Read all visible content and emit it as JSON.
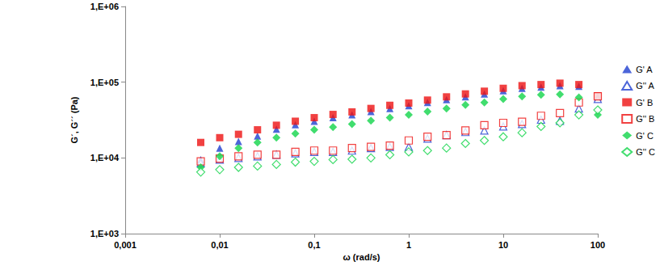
{
  "chart_data": {
    "type": "scatter",
    "x_label": "ω (rad/s)",
    "y_label": "G´, G´´ (Pa)",
    "log": true,
    "grid": false,
    "legend": "right",
    "xlim": [
      0.001,
      100
    ],
    "ylim": [
      1000,
      1000000
    ],
    "xticks": [
      {
        "value": 0.001,
        "label": "0,001"
      },
      {
        "value": 0.01,
        "label": "0,01"
      },
      {
        "value": 0.1,
        "label": "0,1"
      },
      1,
      10,
      100
    ],
    "yticks": [
      {
        "value": 1000,
        "label": "1,E+03"
      },
      {
        "value": 10000,
        "label": "1,E+04"
      },
      {
        "value": 100000,
        "label": "1,E+05"
      },
      {
        "value": 1000000,
        "label": "1,E+06"
      }
    ],
    "x": [
      0.0063,
      0.01,
      0.0158,
      0.0251,
      0.0398,
      0.0631,
      0.1,
      0.158,
      0.251,
      0.398,
      0.631,
      1,
      1.58,
      2.51,
      3.98,
      6.31,
      10,
      15.8,
      25.1,
      39.8,
      63.1,
      100
    ],
    "series": [
      {
        "name": "G' A",
        "color": "#1f3fd0",
        "marker": "triangle",
        "values": [
          9500,
          13500,
          16500,
          19500,
          24000,
          27500,
          30500,
          34000,
          37000,
          41000,
          45000,
          49000,
          54000,
          59000,
          64000,
          70000,
          77000,
          83000,
          86000,
          90000,
          88000,
          64000
        ]
      },
      {
        "name": "G'' A",
        "color": "#1f3fd0",
        "marker": "triangle_open",
        "values": [
          8500,
          9500,
          10000,
          10500,
          11000,
          11500,
          12000,
          12000,
          12500,
          13500,
          14000,
          14000,
          18000,
          20000,
          22000,
          23000,
          26000,
          28000,
          32000,
          31000,
          45000,
          60000
        ]
      },
      {
        "name": "G' B",
        "color": "#ee1111",
        "marker": "square",
        "values": [
          16000,
          18500,
          20500,
          23500,
          27000,
          30500,
          34000,
          37500,
          40500,
          45000,
          49500,
          53000,
          58000,
          64000,
          70000,
          76000,
          83000,
          90000,
          93000,
          97000,
          93000,
          66000
        ]
      },
      {
        "name": "G'' B",
        "color": "#ee1111",
        "marker": "square_open",
        "values": [
          9000,
          9800,
          10500,
          11000,
          11000,
          12000,
          12500,
          12500,
          13500,
          14000,
          14500,
          17000,
          19000,
          20000,
          23000,
          27000,
          29000,
          30000,
          36000,
          39000,
          54000,
          65000
        ]
      },
      {
        "name": "G' C",
        "color": "#11d44a",
        "marker": "diamond",
        "values": [
          7500,
          10500,
          13500,
          16000,
          18500,
          21000,
          23500,
          25500,
          28000,
          31000,
          34000,
          37000,
          41000,
          45000,
          50000,
          54000,
          60000,
          65000,
          68000,
          69000,
          63000,
          37000
        ]
      },
      {
        "name": "G'' C",
        "color": "#11d44a",
        "marker": "diamond_open",
        "values": [
          6500,
          7000,
          7500,
          7800,
          8200,
          8800,
          9000,
          9500,
          9600,
          10000,
          11000,
          12000,
          12500,
          13500,
          15500,
          17000,
          19000,
          21500,
          26000,
          29000,
          37000,
          43000
        ]
      }
    ]
  }
}
